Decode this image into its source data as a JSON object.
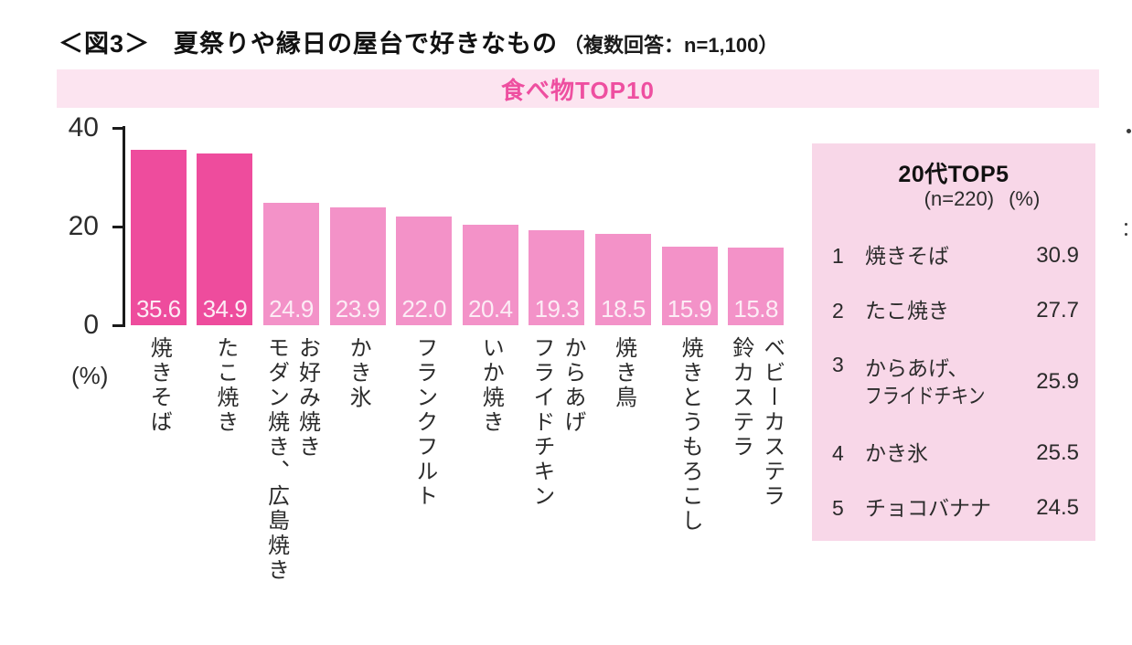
{
  "title": {
    "prefix": "＜図3＞",
    "main": "夏祭りや縁日の屋台で好きなもの",
    "note": "（複数回答：n=1,100）"
  },
  "banner": {
    "label": "食べ物TOP10"
  },
  "chart_data": {
    "type": "bar",
    "title": "食べ物TOP10",
    "categories": [
      "焼きそば",
      "たこ焼き",
      "お好み焼き\nモダン焼き、広島焼き",
      "かき氷",
      "フランクフルト",
      "いか焼き",
      "からあげ\nフライドチキン",
      "焼き鳥",
      "焼きとうもろこし",
      "ベビーカステラ\n鈴カステラ"
    ],
    "values": [
      35.6,
      34.9,
      24.9,
      23.9,
      22.0,
      20.4,
      19.3,
      18.5,
      15.9,
      15.8
    ],
    "value_labels": [
      "35.6",
      "34.9",
      "24.9",
      "23.9",
      "22.0",
      "20.4",
      "19.3",
      "18.5",
      "15.9",
      "15.8"
    ],
    "highlight_count": 2,
    "xlabel": "",
    "ylabel": "(%)",
    "ylim": [
      0,
      40
    ],
    "yticks": [
      0,
      20,
      40
    ],
    "grid": false,
    "legend": "none"
  },
  "side_panel": {
    "title": "20代TOP5",
    "subtitle": "(n=220)",
    "unit_label": "(%)",
    "rows": [
      {
        "rank": "1",
        "name": "焼きそば",
        "value": "30.9"
      },
      {
        "rank": "2",
        "name": "たこ焼き",
        "value": "27.7"
      },
      {
        "rank": "3",
        "name": "からあげ、",
        "name_line2": "フライドチキン",
        "value": "25.9"
      },
      {
        "rank": "4",
        "name": "かき氷",
        "value": "25.5"
      },
      {
        "rank": "5",
        "name": "チョコバナナ",
        "value": "24.5"
      }
    ]
  },
  "colors": {
    "banner_bg": "#fce4f0",
    "banner_text": "#ee4fa0",
    "bar_highlight": "#ee4c9d",
    "bar_normal": "#f392c8",
    "bar_value_text": "#fcecf5",
    "panel_bg": "#f8d7e8",
    "axis": "#1a1a1a"
  }
}
